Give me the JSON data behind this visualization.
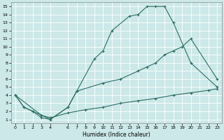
{
  "xlabel": "Humidex (Indice chaleur)",
  "bg_color": "#cce8e8",
  "grid_color": "#b0d4d4",
  "line_color": "#2d6e63",
  "line1_x": [
    0,
    1,
    2,
    3,
    4,
    6,
    7,
    9,
    10,
    11,
    13,
    14,
    15,
    16,
    17,
    18,
    20,
    23
  ],
  "line1_y": [
    4,
    2.5,
    2,
    1.2,
    1,
    2.5,
    4.5,
    8.5,
    9.5,
    12,
    13.8,
    14,
    15,
    15,
    15,
    13,
    8,
    5
  ],
  "line2_x": [
    0,
    3,
    4,
    6,
    7,
    10,
    12,
    14,
    15,
    16,
    17,
    18,
    19,
    20,
    23
  ],
  "line2_y": [
    4,
    1.5,
    1,
    2.5,
    4.5,
    5.5,
    6.0,
    7.0,
    7.5,
    8,
    9,
    9.5,
    10,
    11,
    6
  ],
  "line3_x": [
    0,
    1,
    2,
    3,
    4,
    6,
    8,
    10,
    12,
    14,
    16,
    18,
    20,
    22,
    23
  ],
  "line3_y": [
    4,
    2.5,
    2,
    1.5,
    1.2,
    1.8,
    2.2,
    2.5,
    3.0,
    3.3,
    3.6,
    4.0,
    4.3,
    4.6,
    4.8
  ],
  "xlim": [
    -0.5,
    23.5
  ],
  "ylim": [
    0.5,
    15.5
  ],
  "xticks": [
    0,
    1,
    2,
    3,
    4,
    6,
    7,
    8,
    9,
    10,
    11,
    12,
    13,
    14,
    15,
    16,
    17,
    18,
    19,
    20,
    21,
    22,
    23
  ],
  "yticks": [
    1,
    2,
    3,
    4,
    5,
    6,
    7,
    8,
    9,
    10,
    11,
    12,
    13,
    14,
    15
  ]
}
